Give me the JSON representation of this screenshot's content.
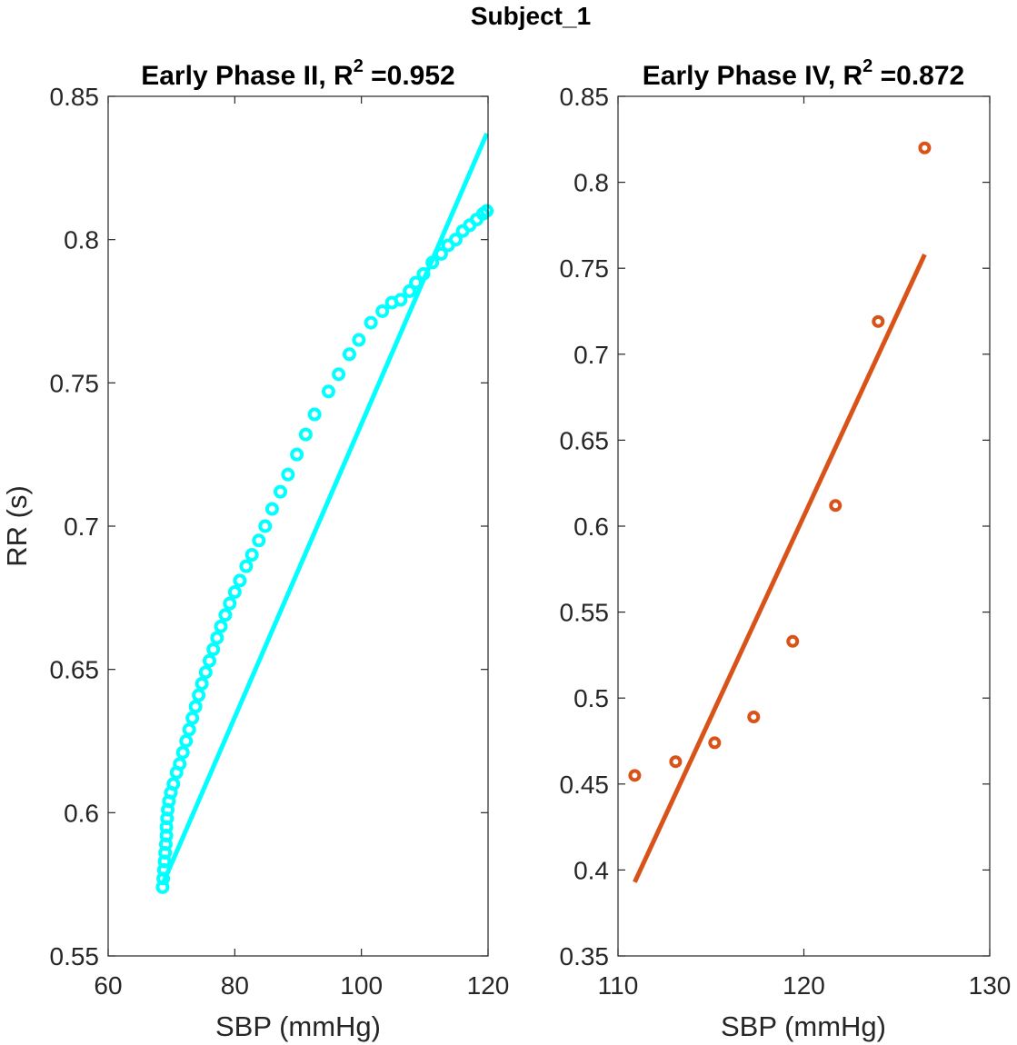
{
  "figure": {
    "title": "Subject_1"
  },
  "chart_data": [
    {
      "type": "scatter",
      "title_prefix": "Early Phase II, R",
      "title_sup": "2",
      "title_suffix": " =0.952",
      "xlabel": "SBP (mmHg)",
      "ylabel": "RR (s)",
      "xlim": [
        60,
        120
      ],
      "ylim": [
        0.55,
        0.85
      ],
      "xticks": [
        "60",
        "80",
        "100",
        "120"
      ],
      "yticks": [
        "0.55",
        "0.6",
        "0.65",
        "0.7",
        "0.75",
        "0.8",
        "0.85"
      ],
      "color": "#00FFFF",
      "points": {
        "x": [
          68.6,
          68.7,
          68.8,
          68.9,
          69.0,
          69.1,
          69.2,
          69.2,
          69.3,
          69.4,
          69.6,
          69.9,
          70.3,
          70.8,
          71.3,
          71.8,
          72.3,
          72.8,
          73.3,
          73.8,
          74.3,
          74.8,
          75.4,
          76.0,
          76.6,
          77.2,
          77.8,
          78.5,
          79.2,
          80.0,
          80.8,
          81.8,
          82.7,
          83.8,
          84.8,
          85.9,
          87.2,
          88.4,
          89.8,
          91.2,
          92.6,
          94.8,
          96.4,
          98.1,
          99.6,
          101.5,
          103.3,
          104.8,
          106.2,
          107.6,
          108.6,
          109.8,
          111.2,
          112.6,
          113.7,
          114.9,
          116.0,
          117.1,
          118.2,
          119.2,
          119.8
        ],
        "y": [
          0.574,
          0.577,
          0.58,
          0.583,
          0.586,
          0.589,
          0.592,
          0.595,
          0.598,
          0.601,
          0.604,
          0.607,
          0.61,
          0.614,
          0.617,
          0.621,
          0.625,
          0.629,
          0.633,
          0.637,
          0.641,
          0.645,
          0.649,
          0.653,
          0.657,
          0.661,
          0.665,
          0.669,
          0.673,
          0.677,
          0.681,
          0.686,
          0.69,
          0.695,
          0.7,
          0.706,
          0.712,
          0.718,
          0.725,
          0.732,
          0.739,
          0.747,
          0.753,
          0.76,
          0.765,
          0.771,
          0.775,
          0.778,
          0.779,
          0.782,
          0.785,
          0.788,
          0.792,
          0.795,
          0.798,
          0.8,
          0.803,
          0.805,
          0.807,
          0.809,
          0.81
        ]
      },
      "fit": {
        "x": [
          68.6,
          119.8
        ],
        "y": [
          0.575,
          0.837
        ]
      }
    },
    {
      "type": "scatter",
      "title_prefix": "Early Phase IV, R",
      "title_sup": "2",
      "title_suffix": " =0.872",
      "xlabel": "SBP (mmHg)",
      "ylabel": "",
      "xlim": [
        110,
        130
      ],
      "ylim": [
        0.35,
        0.85
      ],
      "xticks": [
        "110",
        "120",
        "130"
      ],
      "yticks": [
        "0.35",
        "0.4",
        "0.45",
        "0.5",
        "0.55",
        "0.6",
        "0.65",
        "0.7",
        "0.75",
        "0.8",
        "0.85"
      ],
      "color": "#D95319",
      "points": {
        "x": [
          110.9,
          113.1,
          115.2,
          117.3,
          119.4,
          121.7,
          124.0,
          126.5
        ],
        "y": [
          0.455,
          0.463,
          0.474,
          0.489,
          0.533,
          0.612,
          0.719,
          0.82
        ]
      },
      "fit": {
        "x": [
          110.9,
          126.5
        ],
        "y": [
          0.393,
          0.758
        ]
      }
    }
  ]
}
